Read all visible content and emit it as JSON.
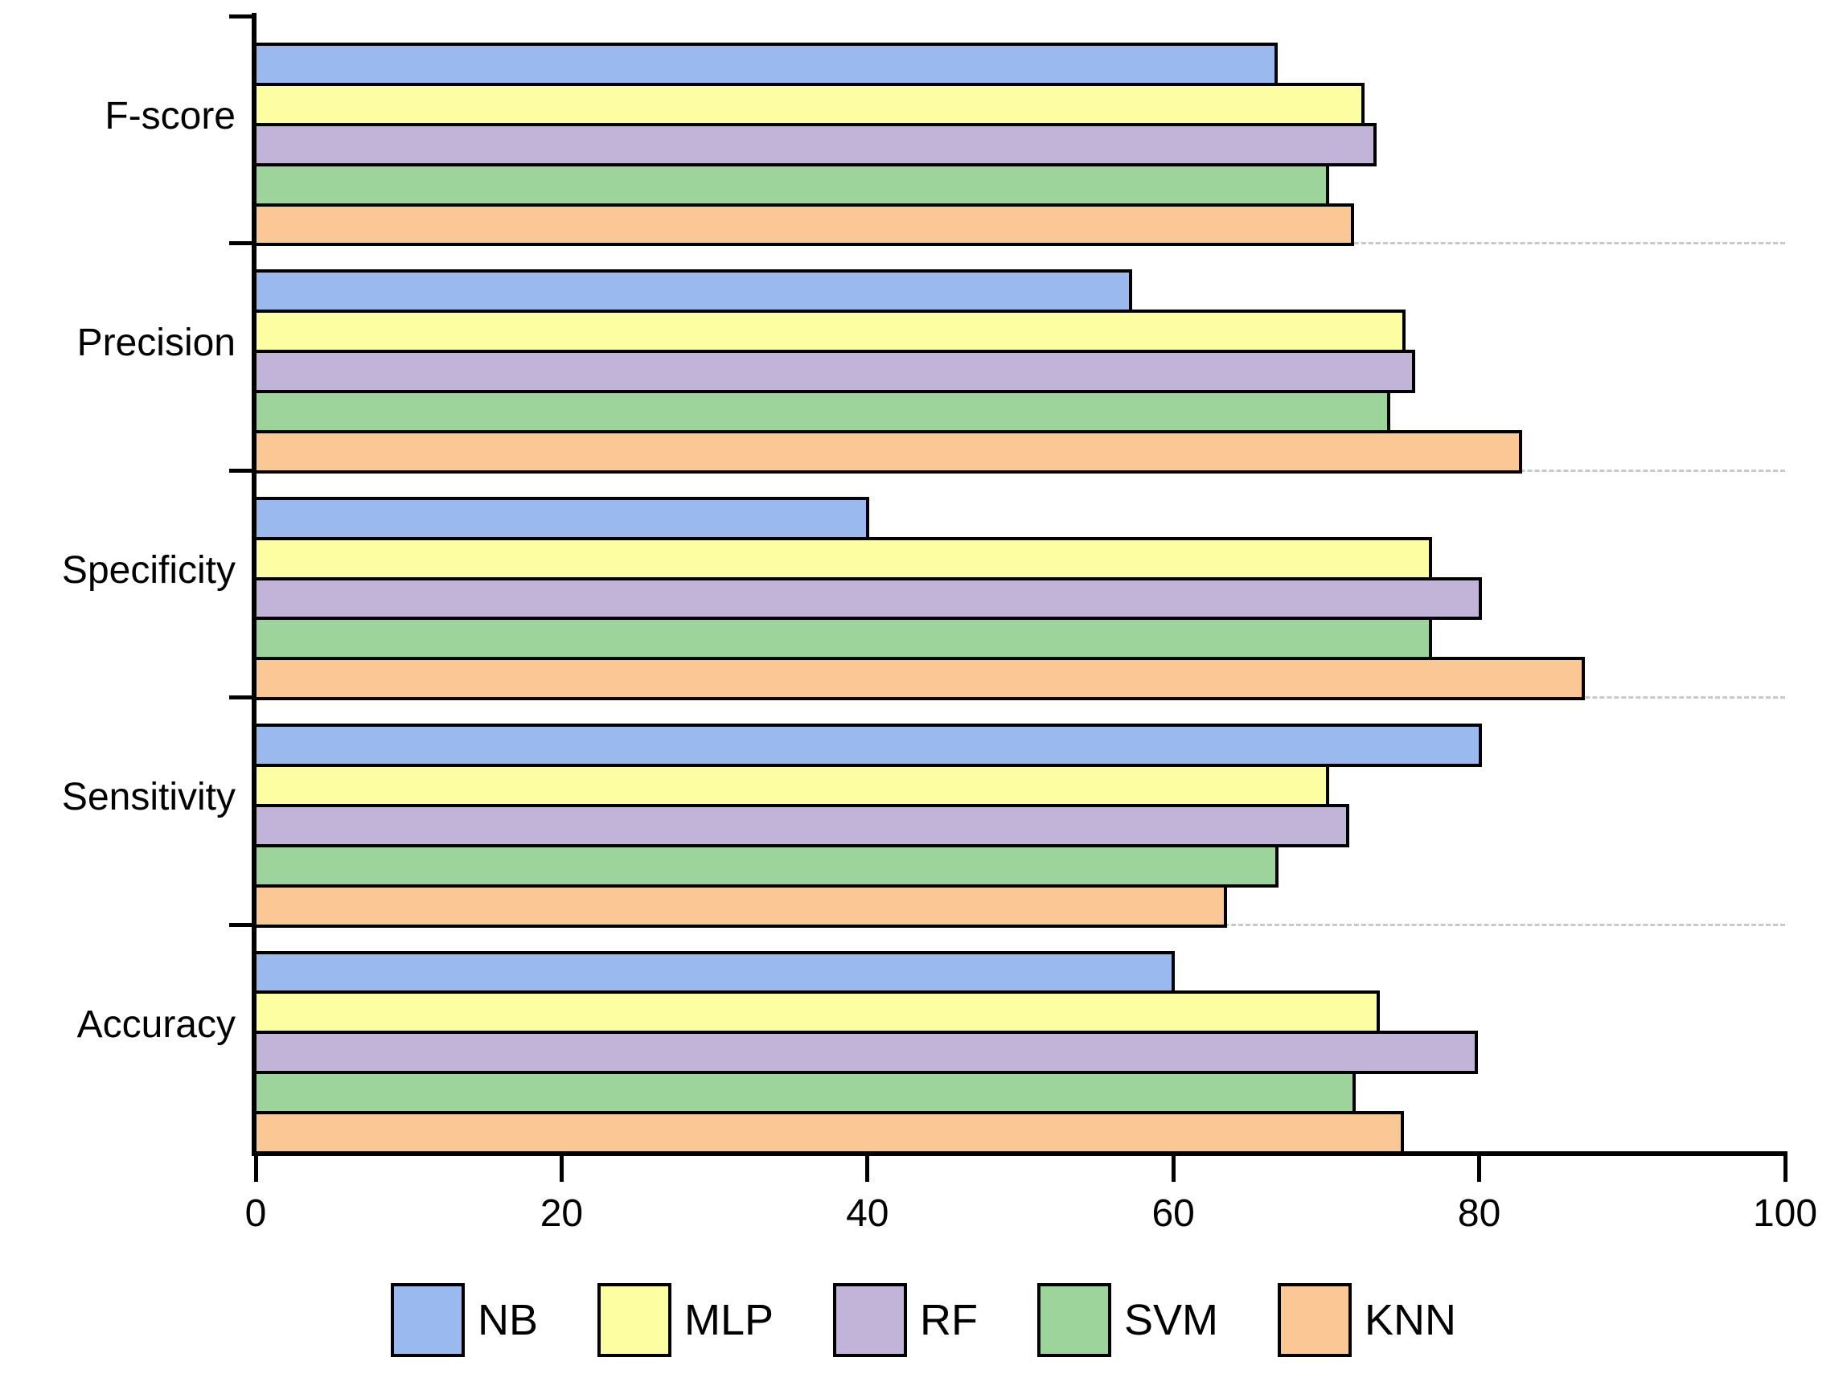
{
  "chart_data": {
    "type": "bar",
    "orientation": "horizontal",
    "title": "",
    "xlabel": "",
    "ylabel": "",
    "categories_top_to_bottom": [
      "F-score",
      "Precision",
      "Specificity",
      "Sensitivity",
      "Accuracy"
    ],
    "bar_order_note": "within each category band, bars top to bottom follow series order NB, MLP, RF, SVM, KNN",
    "series": [
      {
        "name": "NB",
        "color": "#9ab9ee",
        "values": [
          66.8,
          57.3,
          40.1,
          80.2,
          60.1
        ]
      },
      {
        "name": "MLP",
        "color": "#fdfda2",
        "values": [
          72.5,
          75.2,
          76.9,
          70.2,
          73.5
        ]
      },
      {
        "name": "RF",
        "color": "#c2b3d8",
        "values": [
          73.3,
          75.8,
          80.2,
          71.5,
          79.9
        ]
      },
      {
        "name": "SVM",
        "color": "#9cd49c",
        "values": [
          70.2,
          74.2,
          76.9,
          66.9,
          71.9
        ]
      },
      {
        "name": "KNN",
        "color": "#fbc794",
        "values": [
          71.8,
          82.8,
          86.9,
          63.5,
          75.1
        ]
      }
    ],
    "xlim": [
      0,
      100
    ],
    "xticks": [
      0,
      20,
      40,
      60,
      80,
      100
    ],
    "grid": "dashed horizontal separators between category bands",
    "legend_position": "bottom"
  },
  "styles": {
    "background": "#ffffff",
    "axis_color": "#000000",
    "bar_border_color": "#000000",
    "grid_color": "#c9c9c9",
    "text_color": "#000000"
  }
}
